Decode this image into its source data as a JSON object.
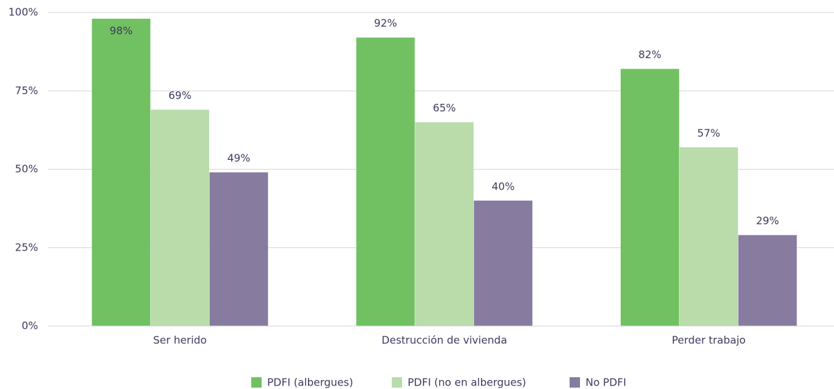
{
  "chart_data": {
    "type": "bar",
    "categories": [
      "Ser herido",
      "Destrucción de vivienda",
      "Perder trabajo"
    ],
    "series": [
      {
        "name": "PDFI (albergues)",
        "color": "#71c162",
        "values": [
          98,
          92,
          82
        ],
        "value_labels": [
          "98%",
          "92%",
          "82%"
        ]
      },
      {
        "name": "PDFI (no en albergues)",
        "color": "#b9dcaa",
        "values": [
          69,
          65,
          57
        ],
        "value_labels": [
          "69%",
          "65%",
          "57%"
        ]
      },
      {
        "name": "No PDFI",
        "color": "#877b9f",
        "values": [
          49,
          40,
          29
        ],
        "value_labels": [
          "49%",
          "40%",
          "29%"
        ]
      }
    ],
    "ylim": [
      0,
      100
    ],
    "yticks": [
      {
        "value": 0,
        "label": "0%"
      },
      {
        "value": 25,
        "label": "25%"
      },
      {
        "value": 50,
        "label": "50%"
      },
      {
        "value": 75,
        "label": "75%"
      },
      {
        "value": 100,
        "label": "100%"
      }
    ],
    "grid": true,
    "legend": "bottom"
  }
}
